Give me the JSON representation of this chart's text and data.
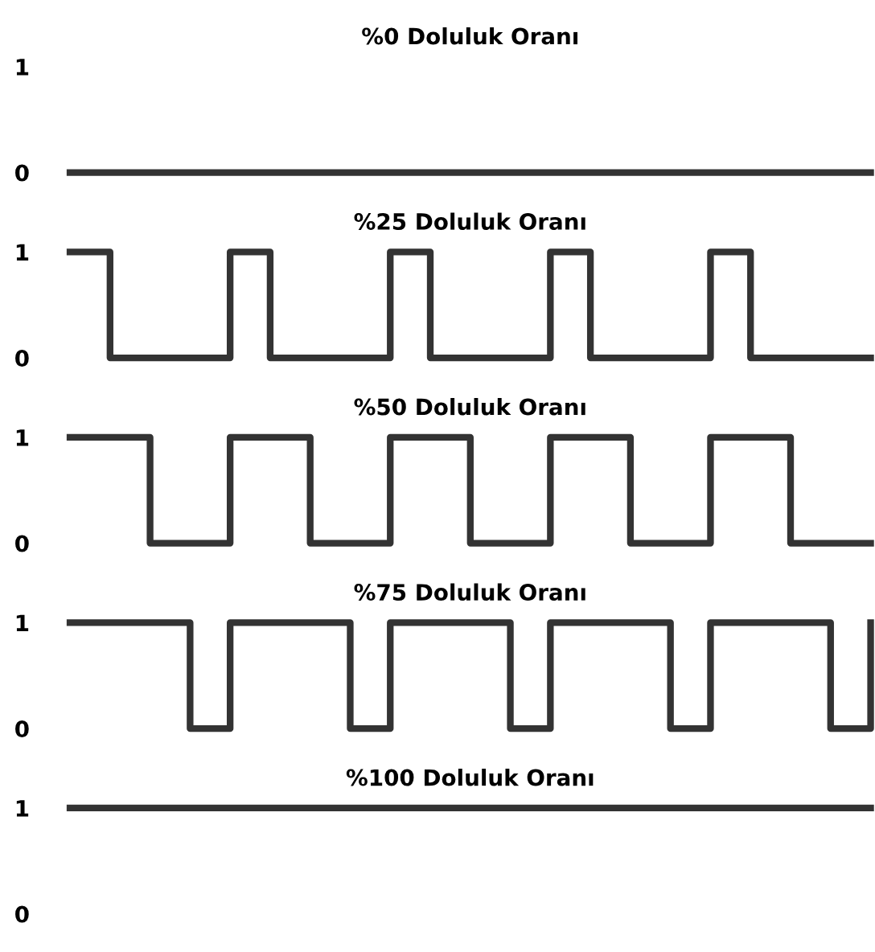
{
  "chart_data": [
    {
      "type": "step",
      "title": "%0 Doluluk Oranı",
      "categories": [
        null,
        null,
        null,
        null,
        null,
        null,
        null,
        null,
        null,
        null,
        null,
        null,
        null,
        null,
        null,
        null,
        null,
        null,
        null,
        null,
        null
      ],
      "series": [
        {
          "color": "#333333",
          "values": [
            0,
            0,
            0,
            0,
            0,
            0,
            0,
            0,
            0,
            0,
            0,
            0,
            0,
            0,
            0,
            0,
            0,
            0,
            0,
            0,
            0
          ]
        }
      ],
      "ylim": [
        0,
        1
      ],
      "yticks": [
        0,
        1
      ],
      "grid": false,
      "legend": false,
      "marker": "none",
      "line_style": "solid"
    },
    {
      "type": "step",
      "title": "%25 Doluluk Oranı",
      "categories": [
        null,
        null,
        null,
        null,
        null,
        null,
        null,
        null,
        null,
        null,
        null,
        null,
        null,
        null,
        null,
        null,
        null,
        null,
        null,
        null,
        null
      ],
      "series": [
        {
          "color": "#333333",
          "values": [
            1,
            0,
            0,
            0,
            1,
            0,
            0,
            0,
            1,
            0,
            0,
            0,
            1,
            0,
            0,
            0,
            1,
            0,
            0,
            0,
            0
          ]
        }
      ],
      "ylim": [
        0,
        1
      ],
      "yticks": [
        0,
        1
      ],
      "grid": false,
      "legend": false,
      "marker": "none",
      "line_style": "solid"
    },
    {
      "type": "step",
      "title": "%50 Doluluk Oranı",
      "categories": [
        null,
        null,
        null,
        null,
        null,
        null,
        null,
        null,
        null,
        null,
        null,
        null,
        null,
        null,
        null,
        null,
        null,
        null,
        null,
        null,
        null
      ],
      "series": [
        {
          "color": "#333333",
          "values": [
            1,
            1,
            0,
            0,
            1,
            1,
            0,
            0,
            1,
            1,
            0,
            0,
            1,
            1,
            0,
            0,
            1,
            1,
            0,
            0,
            0
          ]
        }
      ],
      "ylim": [
        0,
        1
      ],
      "yticks": [
        0,
        1
      ],
      "grid": false,
      "legend": false,
      "marker": "none",
      "line_style": "solid"
    },
    {
      "type": "step",
      "title": "%75 Doluluk Oranı",
      "categories": [
        null,
        null,
        null,
        null,
        null,
        null,
        null,
        null,
        null,
        null,
        null,
        null,
        null,
        null,
        null,
        null,
        null,
        null,
        null,
        null,
        null
      ],
      "series": [
        {
          "color": "#333333",
          "values": [
            1,
            1,
            1,
            0,
            1,
            1,
            1,
            0,
            1,
            1,
            1,
            0,
            1,
            1,
            1,
            0,
            1,
            1,
            1,
            0,
            1
          ]
        }
      ],
      "ylim": [
        0,
        1
      ],
      "yticks": [
        0,
        1
      ],
      "grid": false,
      "legend": false,
      "marker": "none",
      "line_style": "solid"
    },
    {
      "type": "step",
      "title": "%100 Doluluk Oranı",
      "categories": [
        null,
        null,
        null,
        null,
        null,
        null,
        null,
        null,
        null,
        null,
        null,
        null,
        null,
        null,
        null,
        null,
        null,
        null,
        null,
        null,
        null
      ],
      "series": [
        {
          "color": "#333333",
          "values": [
            1,
            1,
            1,
            1,
            1,
            1,
            1,
            1,
            1,
            1,
            1,
            1,
            1,
            1,
            1,
            1,
            1,
            1,
            1,
            1,
            1
          ]
        }
      ],
      "ylim": [
        0,
        1
      ],
      "yticks": [
        0,
        1
      ],
      "grid": false,
      "legend": false,
      "marker": "none",
      "line_style": "solid"
    }
  ]
}
